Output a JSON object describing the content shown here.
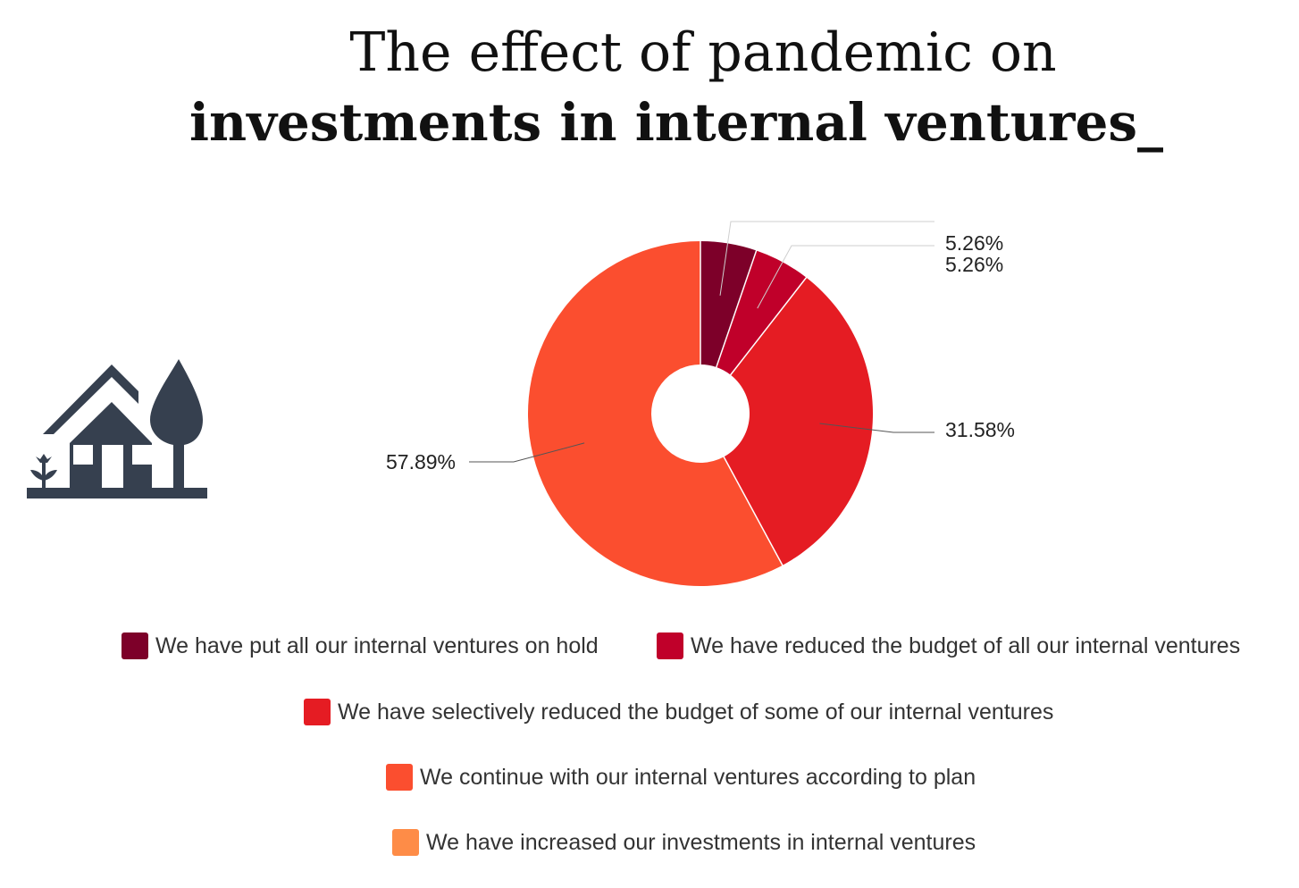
{
  "header": {
    "title_line1": "The effect of pandemic on",
    "title_line2": "investments in internal ventures_"
  },
  "icon": "house-with-tree-icon",
  "chart_data": {
    "type": "pie",
    "donut": true,
    "categories": [
      "We have put all our internal ventures on hold",
      "We have reduced the budget of all our internal ventures",
      "We have selectively reduced the budget of some of our internal ventures",
      "We continue with our internal ventures according to plan",
      "We have increased our investments in internal ventures"
    ],
    "values": [
      5.26,
      5.26,
      31.58,
      57.89,
      0
    ],
    "data_labels": [
      "5.26%",
      "5.26%",
      "31.58%",
      "57.89%",
      ""
    ],
    "colors": [
      "#7d0029",
      "#c0002a",
      "#e51c23",
      "#fb4e2f",
      "#fe8c47"
    ],
    "legend_position": "bottom"
  }
}
